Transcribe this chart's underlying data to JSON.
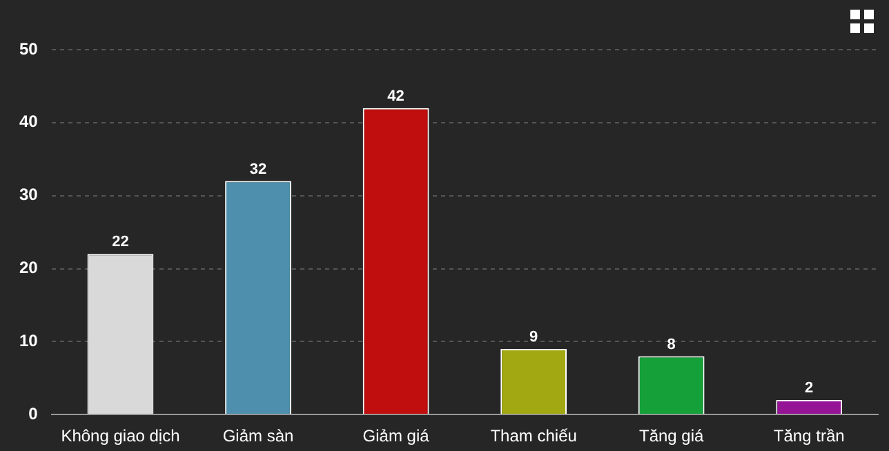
{
  "chart_data": {
    "type": "bar",
    "categories": [
      "Không giao dịch",
      "Giảm sàn",
      "Giảm giá",
      "Tham chiếu",
      "Tăng giá",
      "Tăng trần"
    ],
    "values": [
      22,
      32,
      42,
      9,
      8,
      2
    ],
    "colors": [
      "#d9d9d9",
      "#4d8fad",
      "#c00d0d",
      "#a2a812",
      "#15a03a",
      "#951495"
    ],
    "ylim": [
      0,
      50
    ],
    "yticks": [
      0,
      10,
      20,
      30,
      40,
      50
    ],
    "grid": "y",
    "data_labels": true,
    "legend": false
  }
}
